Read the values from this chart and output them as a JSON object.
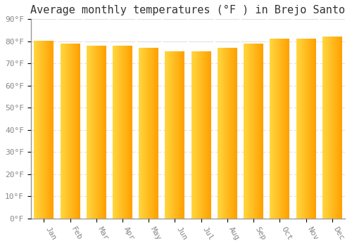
{
  "title": "Average monthly temperatures (°F ) in Brejo Santo",
  "months": [
    "Jan",
    "Feb",
    "Mar",
    "Apr",
    "May",
    "Jun",
    "Jul",
    "Aug",
    "Sep",
    "Oct",
    "Nov",
    "Dec"
  ],
  "values": [
    80,
    79,
    78,
    78,
    77,
    75.5,
    75.5,
    77,
    79,
    81,
    81,
    82
  ],
  "bar_color_left": "#FFD740",
  "bar_color_right": "#FFA000",
  "background_color": "#FFFFFF",
  "grid_color": "#E0E0E0",
  "ylim": [
    0,
    90
  ],
  "yticks": [
    0,
    10,
    20,
    30,
    40,
    50,
    60,
    70,
    80,
    90
  ],
  "ytick_labels": [
    "0°F",
    "10°F",
    "20°F",
    "30°F",
    "40°F",
    "50°F",
    "60°F",
    "70°F",
    "80°F",
    "90°F"
  ],
  "title_fontsize": 11,
  "tick_fontsize": 8,
  "tick_color": "#888888",
  "spine_color": "#999999",
  "bar_width": 0.75,
  "bar_gap_color": "#FFFFFF"
}
